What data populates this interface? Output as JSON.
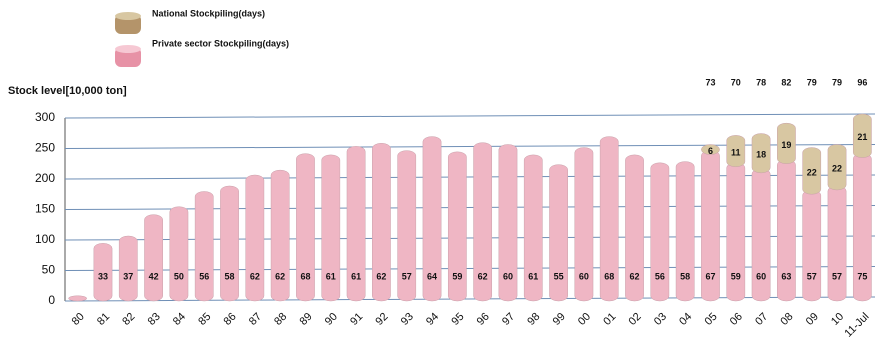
{
  "chart_data": {
    "type": "bar",
    "stacked": true,
    "y_label": "Stock level[10,000 ton]",
    "categories": [
      "80",
      "81",
      "82",
      "83",
      "84",
      "85",
      "86",
      "87",
      "88",
      "89",
      "90",
      "91",
      "92",
      "93",
      "94",
      "95",
      "96",
      "97",
      "98",
      "99",
      "00",
      "01",
      "02",
      "03",
      "04",
      "05",
      "06",
      "07",
      "08",
      "09",
      "10",
      "11-Jul"
    ],
    "series": [
      {
        "name": "National Stockpiling(days)",
        "color": "#d8c7a2",
        "values": [
          null,
          null,
          null,
          null,
          null,
          null,
          null,
          null,
          null,
          null,
          null,
          null,
          null,
          null,
          null,
          null,
          null,
          null,
          null,
          null,
          null,
          null,
          null,
          null,
          null,
          10,
          45,
          58,
          60,
          70,
          68,
          65
        ],
        "days": [
          null,
          null,
          null,
          null,
          null,
          null,
          null,
          null,
          null,
          null,
          null,
          null,
          null,
          null,
          null,
          null,
          null,
          null,
          null,
          null,
          null,
          null,
          null,
          null,
          null,
          6,
          11,
          18,
          19,
          22,
          22,
          21
        ]
      },
      {
        "name": "Private sector Stockpiling(days)",
        "color": "#efb6c4",
        "values": [
          2,
          88,
          100,
          135,
          148,
          173,
          182,
          200,
          208,
          235,
          233,
          247,
          252,
          240,
          263,
          238,
          253,
          250,
          233,
          217,
          245,
          263,
          233,
          220,
          222,
          240,
          220,
          210,
          225,
          175,
          182,
          235
        ],
        "days": [
          null,
          33,
          37,
          42,
          50,
          56,
          58,
          62,
          62,
          68,
          61,
          61,
          62,
          57,
          64,
          59,
          62,
          60,
          61,
          55,
          60,
          68,
          62,
          56,
          58,
          67,
          59,
          60,
          63,
          57,
          57,
          75
        ]
      }
    ],
    "total_days": [
      null,
      null,
      null,
      null,
      null,
      null,
      null,
      null,
      null,
      null,
      null,
      null,
      null,
      null,
      null,
      null,
      null,
      null,
      null,
      null,
      null,
      null,
      null,
      null,
      null,
      73,
      70,
      78,
      82,
      79,
      79,
      96
    ],
    "ylim": [
      0,
      300
    ],
    "yticks": [
      0,
      50,
      100,
      150,
      200,
      250,
      300
    ],
    "grid": true
  }
}
